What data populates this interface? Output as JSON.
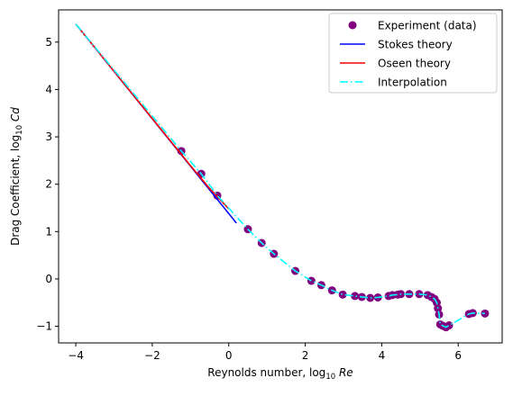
{
  "chart_data": {
    "type": "line",
    "xlabel": "Reynolds number, log$_{10}$ Re",
    "xlabel_text": "Reynolds number, log",
    "xlabel_sub": "10",
    "xlabel_var": "Re",
    "ylabel": "Drag Coefficient, log$_{10}$ Cd",
    "ylabel_text": "Drag Coefficient, log",
    "ylabel_sub": "10",
    "ylabel_var": "Cd",
    "xlim": [
      -4.45,
      7.15
    ],
    "ylim": [
      -1.35,
      5.68
    ],
    "xticks": [
      -4,
      -2,
      0,
      2,
      4,
      6
    ],
    "yticks": [
      -1,
      0,
      1,
      2,
      3,
      4,
      5
    ],
    "grid": false,
    "legend_position": "top-right",
    "series": [
      {
        "name": "Experiment (data)",
        "kind": "markers",
        "color": "#800080",
        "x": [
          -1.24,
          -0.72,
          -0.3,
          0.5,
          0.86,
          1.18,
          1.74,
          2.16,
          2.42,
          2.7,
          2.98,
          3.3,
          3.48,
          3.7,
          3.9,
          4.18,
          4.28,
          4.42,
          4.5,
          4.72,
          4.98,
          5.2,
          5.3,
          5.38,
          5.44,
          5.47,
          5.5,
          5.53,
          5.6,
          5.68,
          5.76,
          6.28,
          6.38,
          6.7
        ],
        "y": [
          2.7,
          2.22,
          1.76,
          1.05,
          0.76,
          0.53,
          0.17,
          -0.04,
          -0.13,
          -0.24,
          -0.33,
          -0.36,
          -0.38,
          -0.4,
          -0.39,
          -0.36,
          -0.34,
          -0.33,
          -0.32,
          -0.32,
          -0.32,
          -0.34,
          -0.38,
          -0.42,
          -0.5,
          -0.62,
          -0.75,
          -0.96,
          -0.99,
          -1.02,
          -0.98,
          -0.74,
          -0.72,
          -0.73
        ]
      },
      {
        "name": "Stokes theory",
        "kind": "line",
        "color": "#0000ff",
        "x": [
          -4.0,
          0.2
        ],
        "y": [
          5.38,
          1.18
        ]
      },
      {
        "name": "Oseen theory",
        "kind": "line",
        "color": "#ff0000",
        "x": [
          -4.0,
          -1.0,
          -0.5,
          0.0
        ],
        "y": [
          5.38,
          2.39,
          1.91,
          1.48
        ]
      },
      {
        "name": "Interpolation",
        "kind": "dashdot",
        "color": "#00ffff",
        "x": [
          -4.0,
          -1.24,
          -0.72,
          -0.3,
          0.5,
          0.86,
          1.18,
          1.74,
          2.16,
          2.42,
          2.7,
          2.98,
          3.3,
          3.48,
          3.7,
          3.9,
          4.18,
          4.28,
          4.42,
          4.5,
          4.72,
          4.98,
          5.2,
          5.3,
          5.38,
          5.44,
          5.47,
          5.5,
          5.53,
          5.6,
          5.68,
          5.76,
          6.28,
          6.38,
          6.7
        ],
        "y": [
          5.38,
          2.7,
          2.22,
          1.76,
          1.05,
          0.76,
          0.53,
          0.17,
          -0.04,
          -0.13,
          -0.24,
          -0.33,
          -0.36,
          -0.38,
          -0.4,
          -0.39,
          -0.36,
          -0.34,
          -0.33,
          -0.32,
          -0.32,
          -0.32,
          -0.34,
          -0.38,
          -0.42,
          -0.5,
          -0.62,
          -0.75,
          -0.96,
          -0.99,
          -1.02,
          -0.98,
          -0.74,
          -0.72,
          -0.73
        ]
      }
    ]
  }
}
